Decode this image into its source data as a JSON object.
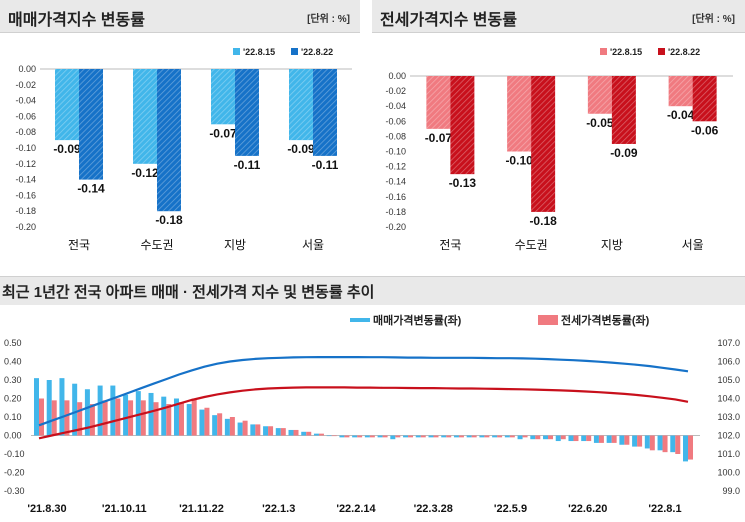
{
  "charts": {
    "left": {
      "title": "매매가격지수 변동률",
      "unit": "[단위 : %]"
    },
    "right": {
      "title": "전세가격지수 변동률",
      "unit": "[단위 : %]"
    },
    "bottom": {
      "title": "최근 1년간 전국 아파트 매매 · 전세가격 지수 및 변동률 추이"
    }
  },
  "chart_data": [
    {
      "type": "bar",
      "title": "매매가격지수 변동률",
      "unit": "[단위 : %]",
      "categories": [
        "전국",
        "수도권",
        "지방",
        "서울"
      ],
      "series": [
        {
          "name": "'22.8.15",
          "values": [
            -0.09,
            -0.12,
            -0.07,
            -0.09
          ],
          "color": "#41b6ea"
        },
        {
          "name": "'22.8.22",
          "values": [
            -0.14,
            -0.18,
            -0.11,
            -0.11
          ],
          "color": "#1672c8"
        }
      ],
      "ylim": [
        -0.2,
        0.0
      ],
      "yticks": [
        "0.00",
        "-0.02",
        "-0.04",
        "-0.06",
        "-0.08",
        "-0.10",
        "-0.12",
        "-0.14",
        "-0.16",
        "-0.18",
        "-0.20"
      ],
      "data_labels": [
        [
          "-0.09",
          "-0.12",
          "-0.07",
          "-0.09"
        ],
        [
          "-0.14",
          "-0.18",
          "-0.11",
          "-0.11"
        ]
      ],
      "legend": "top-right"
    },
    {
      "type": "bar",
      "title": "전세가격지수 변동률",
      "unit": "[단위 : %]",
      "categories": [
        "전국",
        "수도권",
        "지방",
        "서울"
      ],
      "series": [
        {
          "name": "'22.8.15",
          "values": [
            -0.07,
            -0.1,
            -0.05,
            -0.04
          ],
          "color": "#f07a80"
        },
        {
          "name": "'22.8.22",
          "values": [
            -0.13,
            -0.18,
            -0.09,
            -0.06
          ],
          "color": "#c8101c"
        }
      ],
      "ylim": [
        -0.2,
        0.0
      ],
      "yticks": [
        "0.00",
        "-0.02",
        "-0.04",
        "-0.06",
        "-0.08",
        "-0.10",
        "-0.12",
        "-0.14",
        "-0.16",
        "-0.18",
        "-0.20"
      ],
      "data_labels": [
        [
          "-0.07",
          "-0.10",
          "-0.05",
          "-0.04"
        ],
        [
          "-0.13",
          "-0.18",
          "-0.09",
          "-0.06"
        ]
      ],
      "legend": "top-right"
    },
    {
      "type": "bar",
      "title": "최근 1년간 전국 아파트 매매 · 전세가격 지수 및 변동률 추이",
      "x_tick_labels": [
        "'21.8.30",
        "'21.10.11",
        "'21.11.22",
        "'22.1.3",
        "'22.2.14",
        "'22.3.28",
        "'22.5.9",
        "'22.6.20",
        "'22.8.1"
      ],
      "series": [
        {
          "name": "매매가격변동률(좌)",
          "axis": "left",
          "color": "#41b6ea",
          "values": [
            0.31,
            0.3,
            0.31,
            0.28,
            0.25,
            0.27,
            0.27,
            0.22,
            0.24,
            0.23,
            0.21,
            0.2,
            0.17,
            0.14,
            0.11,
            0.09,
            0.07,
            0.06,
            0.05,
            0.04,
            0.03,
            0.02,
            0.01,
            0.0,
            -0.01,
            -0.01,
            -0.01,
            -0.01,
            -0.02,
            -0.01,
            -0.01,
            -0.01,
            -0.01,
            -0.01,
            -0.01,
            -0.01,
            -0.01,
            -0.01,
            -0.02,
            -0.02,
            -0.02,
            -0.03,
            -0.03,
            -0.03,
            -0.04,
            -0.04,
            -0.05,
            -0.06,
            -0.07,
            -0.08,
            -0.09,
            -0.14
          ]
        },
        {
          "name": "전세가격변동률(좌)",
          "axis": "left",
          "color": "#f07a80",
          "values": [
            0.2,
            0.19,
            0.19,
            0.18,
            0.17,
            0.19,
            0.2,
            0.19,
            0.19,
            0.18,
            0.17,
            0.18,
            0.2,
            0.15,
            0.12,
            0.1,
            0.08,
            0.06,
            0.05,
            0.04,
            0.03,
            0.02,
            0.01,
            0.0,
            -0.01,
            -0.01,
            -0.01,
            -0.01,
            -0.01,
            -0.01,
            -0.01,
            -0.01,
            -0.01,
            -0.01,
            -0.01,
            -0.01,
            -0.01,
            -0.01,
            -0.01,
            -0.02,
            -0.02,
            -0.02,
            -0.03,
            -0.03,
            -0.04,
            -0.04,
            -0.05,
            -0.06,
            -0.08,
            -0.09,
            -0.1,
            -0.13
          ]
        },
        {
          "name": "매매가격지수",
          "axis": "right",
          "type": "line",
          "color": "#1672c8",
          "values": [
            102.55,
            102.8,
            103.05,
            103.3,
            103.55,
            103.8,
            104.05,
            104.3,
            104.55,
            104.8,
            105.05,
            105.3,
            105.52,
            105.72,
            105.88,
            106.0,
            106.08,
            106.14,
            106.18,
            106.2,
            106.22,
            106.23,
            106.24,
            106.24,
            106.24,
            106.24,
            106.23,
            106.23,
            106.22,
            106.21,
            106.21,
            106.2,
            106.2,
            106.2,
            106.2,
            106.19,
            106.18,
            106.18,
            106.17,
            106.15,
            106.13,
            106.1,
            106.07,
            106.03,
            105.99,
            105.94,
            105.88,
            105.82,
            105.75,
            105.66,
            105.57,
            105.47
          ]
        },
        {
          "name": "전세가격지수",
          "axis": "right",
          "type": "line",
          "color": "#c8101c",
          "values": [
            101.85,
            102.0,
            102.15,
            102.3,
            102.45,
            102.62,
            102.8,
            102.98,
            103.15,
            103.33,
            103.52,
            103.72,
            103.92,
            104.08,
            104.22,
            104.33,
            104.42,
            104.49,
            104.54,
            104.57,
            104.59,
            104.6,
            104.6,
            104.6,
            104.6,
            104.59,
            104.59,
            104.58,
            104.58,
            104.57,
            104.56,
            104.56,
            104.55,
            104.54,
            104.54,
            104.53,
            104.52,
            104.51,
            104.5,
            104.48,
            104.46,
            104.44,
            104.41,
            104.38,
            104.34,
            104.3,
            104.25,
            104.19,
            104.12,
            104.04,
            103.95,
            103.82
          ]
        }
      ],
      "left_axis": {
        "ylim": [
          -0.3,
          0.5
        ],
        "ticks": [
          "0.50",
          "0.40",
          "0.30",
          "0.20",
          "0.10",
          "0.00",
          "-0.10",
          "-0.20",
          "-0.30"
        ]
      },
      "right_axis": {
        "ylim": [
          99.0,
          107.0
        ],
        "ticks": [
          "107.0",
          "106.0",
          "105.0",
          "104.0",
          "103.0",
          "102.0",
          "101.0",
          "100.0",
          "99.0"
        ]
      },
      "legend": "top-right"
    }
  ]
}
